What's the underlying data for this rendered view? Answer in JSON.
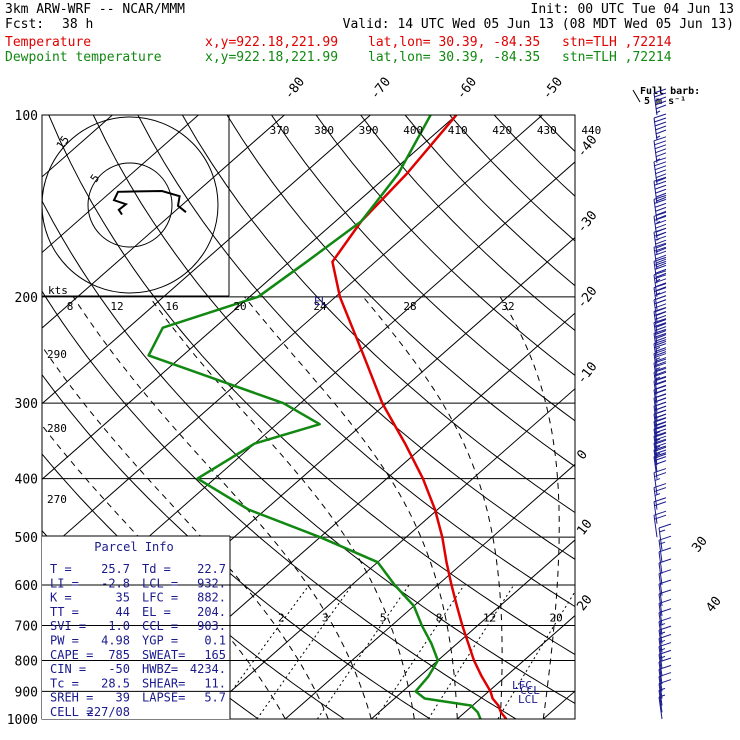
{
  "header": {
    "model": "3km ARW-WRF -- NCAR/MMM",
    "init": "Init: 00 UTC Tue 04 Jun 13",
    "fcst_label": "Fcst:",
    "fcst_value": "38 h",
    "valid": "Valid: 14 UTC Wed 05 Jun 13 (08 MDT Wed 05 Jun 13)",
    "temp_label": "Temperature",
    "dew_label": "Dewpoint temperature",
    "xy": "x,y=922.18,221.99",
    "latlon": "lat,lon= 30.39, -84.35",
    "stn": "stn=TLH ,72214"
  },
  "colors": {
    "temperature": "#e00000",
    "dewpoint": "#118811",
    "axes": "#000000",
    "parcel": "#1a1a8c"
  },
  "chart_data": {
    "type": "line",
    "title": "",
    "y_axis": "pressure (hPa), log scale",
    "pressure_labels": [
      100,
      200,
      300,
      400,
      500,
      600,
      700,
      800,
      900,
      1000
    ],
    "temperature_labels": [
      -80,
      -70,
      -60,
      -50,
      -40,
      -30,
      -20,
      -10,
      0,
      10,
      20,
      30,
      40
    ],
    "theta_labels": [
      370,
      380,
      390,
      400,
      410,
      420,
      430,
      440
    ],
    "theta_labels_left": [
      270,
      280,
      290
    ],
    "mixing_ratio_labels": [
      2,
      3,
      5,
      8,
      12,
      20
    ],
    "hodograph_ring_labels": [
      "8",
      "12",
      "16",
      "20",
      "24",
      "28",
      "32"
    ],
    "hodograph_units": "kts",
    "hodograph_circle_labels": [
      "15",
      "5"
    ],
    "barb_legend": [
      "Full barb:",
      "5 m s⁻¹"
    ],
    "level_labels": [
      "EL",
      "LFC",
      "CCL",
      "LCL"
    ],
    "series": [
      {
        "name": "Temperature",
        "color": "#e00000",
        "points": [
          [
            1000,
            25.7
          ],
          [
            975,
            24.2
          ],
          [
            950,
            23.0
          ],
          [
            925,
            21.4
          ],
          [
            900,
            20.2
          ],
          [
            850,
            17.2
          ],
          [
            800,
            14.2
          ],
          [
            750,
            11.3
          ],
          [
            700,
            8.2
          ],
          [
            650,
            5.0
          ],
          [
            600,
            1.6
          ],
          [
            550,
            -2.0
          ],
          [
            500,
            -5.8
          ],
          [
            450,
            -10.3
          ],
          [
            400,
            -15.8
          ],
          [
            350,
            -22.5
          ],
          [
            300,
            -30.5
          ],
          [
            250,
            -39.0
          ],
          [
            200,
            -49.5
          ],
          [
            175,
            -55.0
          ],
          [
            150,
            -57.0
          ],
          [
            125,
            -58.0
          ],
          [
            100,
            -60.0
          ]
        ]
      },
      {
        "name": "Dewpoint temperature",
        "color": "#118811",
        "points": [
          [
            1000,
            22.7
          ],
          [
            975,
            21.5
          ],
          [
            950,
            19.8
          ],
          [
            925,
            13.5
          ],
          [
            900,
            11.5
          ],
          [
            850,
            11.0
          ],
          [
            800,
            10.0
          ],
          [
            750,
            7.0
          ],
          [
            700,
            3.5
          ],
          [
            650,
            0.0
          ],
          [
            600,
            -5.0
          ],
          [
            550,
            -10.0
          ],
          [
            500,
            -20.0
          ],
          [
            450,
            -32.0
          ],
          [
            400,
            -42.0
          ],
          [
            350,
            -40.0
          ],
          [
            325,
            -35.0
          ],
          [
            300,
            -42.0
          ],
          [
            250,
            -64.0
          ],
          [
            225,
            -66.0
          ],
          [
            200,
            -59.0
          ],
          [
            175,
            -58.0
          ],
          [
            150,
            -57.0
          ],
          [
            125,
            -59.0
          ],
          [
            100,
            -63.0
          ]
        ]
      }
    ],
    "hodograph": {
      "path": [
        [
          0.7,
          0.18
        ],
        [
          0.6,
          0.02
        ],
        [
          0.62,
          -0.22
        ],
        [
          0.4,
          -0.35
        ],
        [
          0.1,
          -0.34
        ],
        [
          -0.15,
          -0.33
        ],
        [
          -0.2,
          -0.12
        ],
        [
          -0.05,
          -0.02
        ],
        [
          -0.14,
          0.12
        ],
        [
          -0.1,
          0.24
        ]
      ]
    },
    "wind_barbs": {
      "hPa": [
        100,
        110,
        120,
        130,
        140,
        150,
        160,
        170,
        180,
        190,
        200,
        210,
        220,
        230,
        240,
        250,
        260,
        270,
        280,
        290,
        300,
        310,
        320,
        330,
        340,
        350,
        360,
        370,
        380,
        390,
        400,
        425,
        450,
        475,
        500,
        525,
        550,
        575,
        600,
        625,
        650,
        675,
        700,
        725,
        750,
        775,
        800,
        825,
        850,
        875,
        900,
        925,
        950,
        975,
        1000
      ],
      "kt": [
        55,
        55,
        55,
        60,
        60,
        65,
        65,
        60,
        60,
        55,
        55,
        50,
        50,
        50,
        50,
        45,
        45,
        45,
        45,
        40,
        40,
        40,
        40,
        40,
        40,
        35,
        35,
        35,
        35,
        30,
        30,
        25,
        25,
        20,
        20,
        15,
        15,
        10,
        10,
        10,
        10,
        10,
        10,
        10,
        15,
        15,
        15,
        15,
        15,
        10,
        10,
        10,
        10,
        5,
        5
      ]
    }
  },
  "parcel_info": {
    "title": "Parcel Info",
    "rows": [
      [
        "T  =",
        "25.7",
        "Td =",
        "22.7"
      ],
      [
        "LI =",
        "-2.8",
        "LCL =",
        "932."
      ],
      [
        "K  =",
        "35",
        "LFC =",
        "882."
      ],
      [
        "TT =",
        "44",
        "EL  =",
        "204."
      ],
      [
        "SVI =",
        "1.0",
        "CCL =",
        "903."
      ],
      [
        "PW =",
        "4.98",
        "YGP =",
        "0.1"
      ],
      [
        "CAPE =",
        "785",
        "SWEAT=",
        "165"
      ],
      [
        "CIN =",
        "-50",
        "HWBZ=",
        "4234."
      ],
      [
        "Tc =",
        "28.5",
        "SHEAR=",
        "11."
      ],
      [
        "SREH =",
        "39",
        "LAPSE=",
        "5.7"
      ],
      [
        "CELL =",
        "227/08",
        "",
        ""
      ]
    ]
  }
}
